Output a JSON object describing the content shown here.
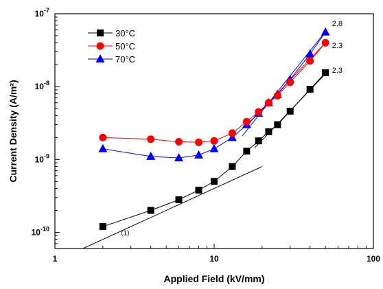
{
  "chart_data": {
    "type": "scatter",
    "xlabel": "Applied Field (kV/mm)",
    "ylabel": "Current Density (A/m²)",
    "xscale": "log",
    "yscale": "log",
    "xlim": [
      1,
      100
    ],
    "ylim": [
      6e-11,
      1e-07
    ],
    "xticks": [
      1,
      10,
      100
    ],
    "xtick_labels": [
      "1",
      "10",
      "100"
    ],
    "yticks": [
      1e-10,
      1e-09,
      1e-08,
      1e-07
    ],
    "ytick_labels": [
      {
        "base": "10",
        "exp": "-10"
      },
      {
        "base": "10",
        "exp": "-9"
      },
      {
        "base": "10",
        "exp": "-8"
      },
      {
        "base": "10",
        "exp": "-7"
      }
    ],
    "grid": false,
    "legend_position": "top-left",
    "series": [
      {
        "name": "30°C",
        "color": "#000000",
        "marker": "square",
        "x": [
          2,
          4,
          6,
          8,
          10,
          13,
          16,
          19,
          22,
          25,
          30,
          40,
          50
        ],
        "y": [
          1.2e-10,
          2e-10,
          2.8e-10,
          3.8e-10,
          5e-10,
          8e-10,
          1.3e-09,
          1.8e-09,
          2.4e-09,
          3e-09,
          4.6e-09,
          9.2e-09,
          1.55e-08
        ]
      },
      {
        "name": "50°C",
        "color": "#ff0000",
        "marker": "circle",
        "x": [
          2,
          4,
          6,
          8,
          10,
          13,
          16,
          19,
          22,
          25,
          30,
          40,
          50
        ],
        "y": [
          2e-09,
          1.9e-09,
          1.75e-09,
          1.72e-09,
          1.8e-09,
          2.3e-09,
          3.3e-09,
          4.5e-09,
          6e-09,
          7.5e-09,
          1.15e-08,
          2.25e-08,
          4e-08
        ]
      },
      {
        "name": "70°C",
        "color": "#0000ff",
        "marker": "triangle",
        "x": [
          2,
          4,
          6,
          8,
          10,
          13,
          16,
          19,
          22,
          25,
          30,
          40,
          50
        ],
        "y": [
          1.4e-09,
          1.1e-09,
          1.05e-09,
          1.15e-09,
          1.4e-09,
          2e-09,
          3e-09,
          4.3e-09,
          6e-09,
          7.8e-09,
          1.25e-08,
          2.8e-08,
          5.6e-08
        ]
      }
    ],
    "fit_lines": [
      {
        "label": "(1)",
        "color": "#000000",
        "x": [
          1.5,
          20
        ],
        "y": [
          6e-11,
          8e-10
        ]
      },
      {
        "label": "2.3",
        "color": "#000000",
        "x": [
          18,
          50
        ],
        "y": [
          1.45e-09,
          1.5e-08
        ]
      },
      {
        "label": "2.3",
        "color": "#ff0000",
        "x": [
          16,
          50
        ],
        "y": [
          2.9e-09,
          4e-08
        ]
      },
      {
        "label": "2.8",
        "color": "#0000ff",
        "x": [
          15,
          50
        ],
        "y": [
          2.1e-09,
          5.7e-08
        ]
      }
    ]
  }
}
